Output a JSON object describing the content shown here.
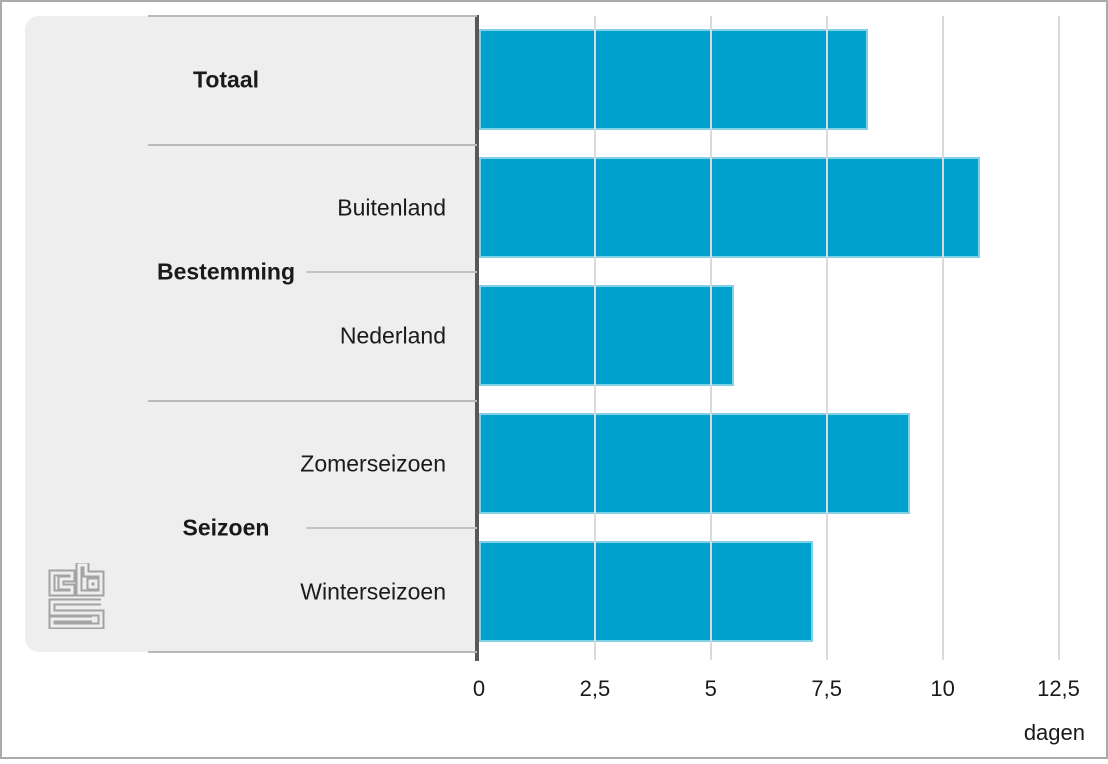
{
  "chart_data": {
    "type": "bar",
    "orientation": "horizontal",
    "title": "",
    "xlabel": "dagen",
    "ylabel": "",
    "xlim": [
      0,
      13.5
    ],
    "grid": true,
    "legend": false,
    "categories": [
      "Totaal",
      "Buitenland",
      "Nederland",
      "Zomerseizoen",
      "Winterseizoen"
    ],
    "values": [
      8.4,
      10.8,
      5.5,
      9.3,
      7.2
    ],
    "groups": [
      {
        "label": "Totaal",
        "items": [
          {
            "label": "",
            "value": 8.4
          }
        ]
      },
      {
        "label": "Bestemming",
        "items": [
          {
            "label": "Buitenland",
            "value": 10.8
          },
          {
            "label": "Nederland",
            "value": 5.5
          }
        ]
      },
      {
        "label": "Seizoen",
        "items": [
          {
            "label": "Zomerseizoen",
            "value": 9.3
          },
          {
            "label": "Winterseizoen",
            "value": 7.2
          }
        ]
      }
    ],
    "x_ticks": [
      {
        "label": "0",
        "value": 0
      },
      {
        "label": "2,5",
        "value": 2.5
      },
      {
        "label": "5",
        "value": 5
      },
      {
        "label": "7,5",
        "value": 7.5
      },
      {
        "label": "10",
        "value": 10
      },
      {
        "label": "12,5",
        "value": 12.5
      }
    ],
    "colors": {
      "bar": "#00a1cd",
      "bar_edge": "#82d0e6",
      "panel_background": "#eeeeee",
      "gridline": "#dadada",
      "axis_line": "#58585a",
      "divider_line": "#b9b9b9",
      "text": "#1a1a1a",
      "logo_gray": "#a3a3a2"
    }
  },
  "branding": {
    "logo_name": "cbs"
  }
}
